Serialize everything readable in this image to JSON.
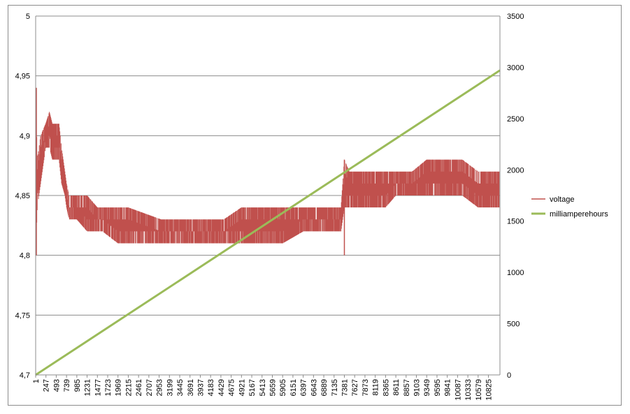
{
  "chart_data": {
    "type": "line",
    "title": "",
    "xlabel": "",
    "ylabel": "",
    "y2label": "",
    "x_tick_labels": [
      "1",
      "247",
      "493",
      "739",
      "985",
      "1231",
      "1477",
      "1723",
      "1969",
      "2215",
      "2461",
      "2707",
      "2953",
      "3199",
      "3445",
      "3691",
      "3937",
      "4183",
      "4429",
      "4675",
      "4921",
      "5167",
      "5413",
      "5659",
      "5905",
      "6151",
      "6397",
      "6643",
      "6889",
      "7135",
      "7381",
      "7627",
      "7873",
      "8119",
      "8365",
      "8611",
      "8857",
      "9103",
      "9349",
      "9595",
      "9841",
      "10087",
      "10333",
      "10579",
      "10825"
    ],
    "xlim": [
      1,
      11100
    ],
    "y_left": {
      "ylim": [
        4.7,
        5.0
      ],
      "ticks": [
        "4,7",
        "4,75",
        "4,8",
        "4,85",
        "4,9",
        "4,95",
        "5"
      ]
    },
    "y_right": {
      "ylim": [
        0,
        3500
      ],
      "ticks": [
        "0",
        "500",
        "1000",
        "1500",
        "2000",
        "2500",
        "3000",
        "3500"
      ]
    },
    "grid": true,
    "legend_position": "right",
    "series": [
      {
        "name": "voltage",
        "axis": "left",
        "color": "#c0504d",
        "style": "noisy band between low and high values",
        "x": [
          1,
          40,
          120,
          240,
          330,
          400,
          493,
          560,
          620,
          700,
          739,
          800,
          985,
          1231,
          1477,
          1600,
          1969,
          2215,
          3000,
          3800,
          4500,
          4921,
          5400,
          5905,
          6400,
          7000,
          7300,
          7381,
          7500,
          8000,
          8365,
          8611,
          9000,
          9349,
          9800,
          10200,
          10579,
          10825,
          11100
        ],
        "low": [
          4.8,
          4.84,
          4.86,
          4.89,
          4.89,
          4.88,
          4.88,
          4.88,
          4.86,
          4.85,
          4.84,
          4.83,
          4.83,
          4.82,
          4.82,
          4.82,
          4.81,
          4.81,
          4.81,
          4.81,
          4.81,
          4.81,
          4.81,
          4.81,
          4.82,
          4.82,
          4.82,
          4.84,
          4.84,
          4.84,
          4.84,
          4.85,
          4.85,
          4.85,
          4.85,
          4.85,
          4.84,
          4.84,
          4.84
        ],
        "high": [
          4.94,
          4.88,
          4.9,
          4.91,
          4.92,
          4.91,
          4.91,
          4.91,
          4.89,
          4.87,
          4.86,
          4.85,
          4.85,
          4.85,
          4.84,
          4.84,
          4.84,
          4.84,
          4.83,
          4.83,
          4.83,
          4.84,
          4.84,
          4.84,
          4.84,
          4.84,
          4.84,
          4.88,
          4.87,
          4.87,
          4.87,
          4.87,
          4.87,
          4.88,
          4.88,
          4.88,
          4.87,
          4.87,
          4.87
        ]
      },
      {
        "name": "milliamperehours",
        "axis": "right",
        "color": "#9bbb59",
        "x": [
          1,
          11100
        ],
        "values": [
          0,
          2970
        ]
      }
    ]
  }
}
